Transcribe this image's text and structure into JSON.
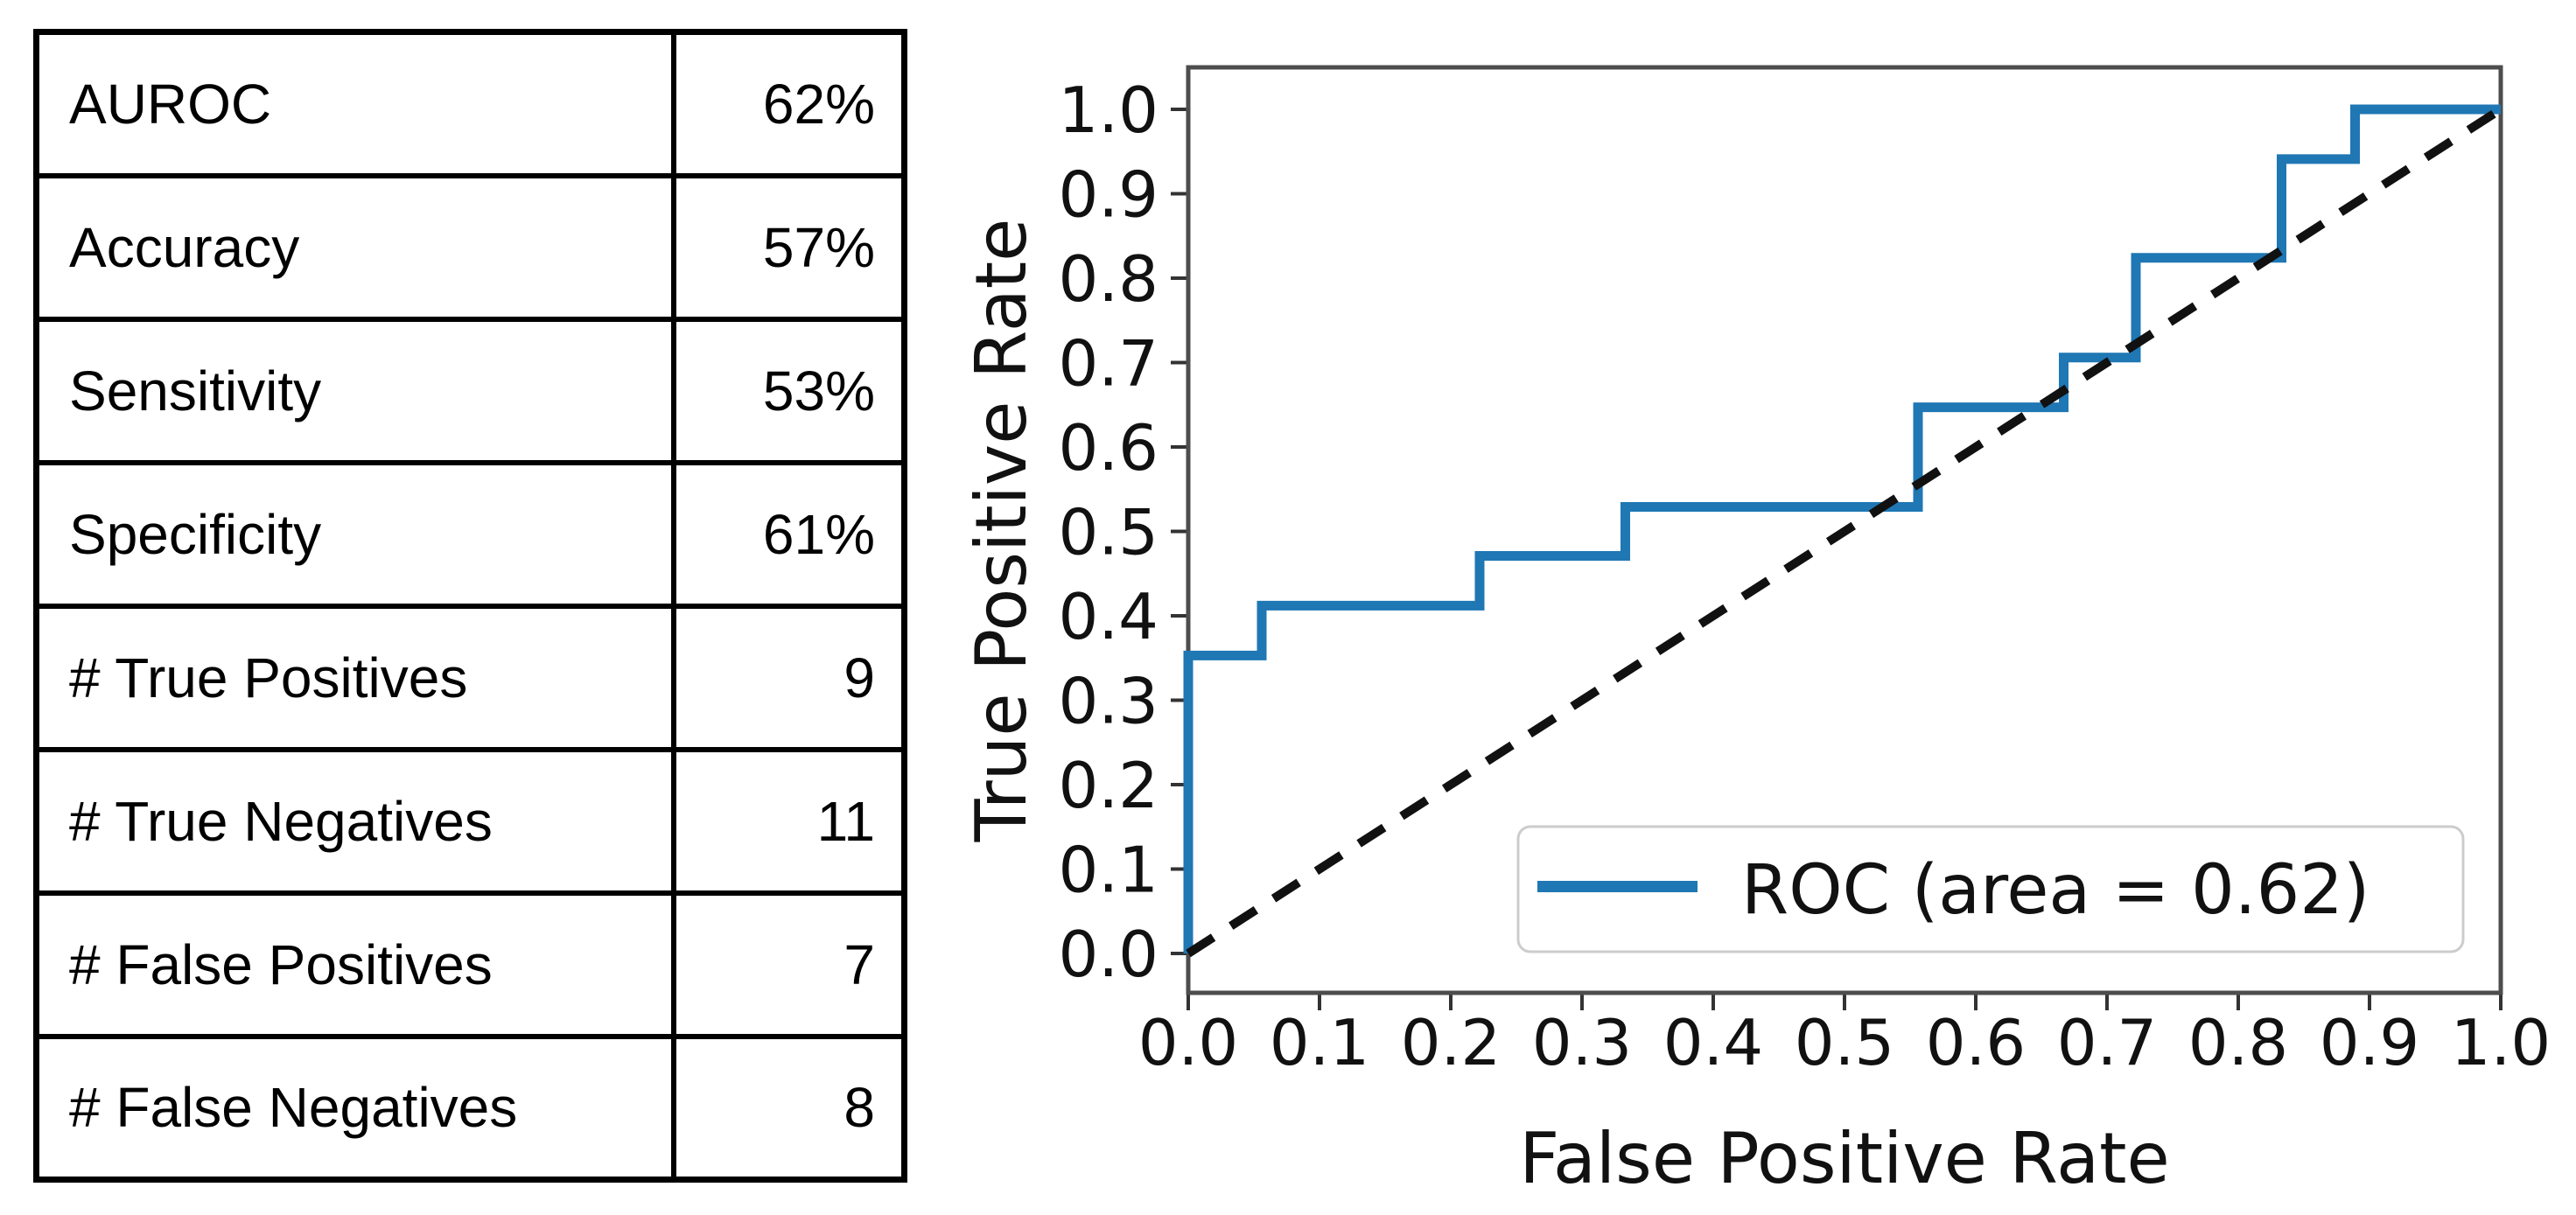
{
  "table": {
    "rows": [
      {
        "label": "AUROC",
        "value": "62%"
      },
      {
        "label": "Accuracy",
        "value": "57%"
      },
      {
        "label": "Sensitivity",
        "value": "53%"
      },
      {
        "label": "Specificity",
        "value": "61%"
      },
      {
        "label": "# True Positives",
        "value": "9"
      },
      {
        "label": "# True Negatives",
        "value": "11"
      },
      {
        "label": "# False Positives",
        "value": "7"
      },
      {
        "label": "# False Negatives",
        "value": "8"
      }
    ]
  },
  "chart_data": {
    "type": "line",
    "title": "",
    "xlabel": "False Positive Rate",
    "ylabel": "True Positive Rate",
    "xlim": [
      0.0,
      1.0
    ],
    "ylim": [
      -0.047,
      1.049
    ],
    "grid": false,
    "auc": 0.62,
    "xticks": {
      "values": [
        0.0,
        0.1,
        0.2,
        0.3,
        0.4,
        0.5,
        0.6,
        0.7,
        0.8,
        0.9,
        1.0
      ],
      "labels": [
        "0.0",
        "0.1",
        "0.2",
        "0.3",
        "0.4",
        "0.5",
        "0.6",
        "0.7",
        "0.8",
        "0.9",
        "1.0"
      ]
    },
    "yticks": {
      "values": [
        0.0,
        0.1,
        0.2,
        0.3,
        0.4,
        0.5,
        0.6,
        0.7,
        0.8,
        0.9,
        1.0
      ],
      "labels": [
        "0.0",
        "0.1",
        "0.2",
        "0.3",
        "0.4",
        "0.5",
        "0.6",
        "0.7",
        "0.8",
        "0.9",
        "1.0"
      ]
    },
    "legend": {
      "position": "lower right",
      "label": "ROC (area = 0.62)",
      "line_color": "#1f77b4"
    },
    "series": [
      {
        "name": "ROC (area = 0.62)",
        "style": "step",
        "color": "#1f77b4",
        "vertices": [
          [
            0.0,
            0.0
          ],
          [
            0.0,
            0.353
          ],
          [
            0.056,
            0.353
          ],
          [
            0.056,
            0.412
          ],
          [
            0.222,
            0.412
          ],
          [
            0.222,
            0.471
          ],
          [
            0.333,
            0.471
          ],
          [
            0.333,
            0.529
          ],
          [
            0.556,
            0.529
          ],
          [
            0.556,
            0.647
          ],
          [
            0.667,
            0.647
          ],
          [
            0.667,
            0.706
          ],
          [
            0.722,
            0.706
          ],
          [
            0.722,
            0.824
          ],
          [
            0.833,
            0.824
          ],
          [
            0.833,
            0.941
          ],
          [
            0.889,
            0.941
          ],
          [
            0.889,
            1.0
          ],
          [
            1.0,
            1.0
          ]
        ]
      },
      {
        "name": "chance-diagonal",
        "style": "dashed",
        "color": "#111111",
        "vertices": [
          [
            0.0,
            0.0
          ],
          [
            1.0,
            1.0
          ]
        ]
      }
    ]
  },
  "colors": {
    "roc_blue": "#1f77b4",
    "dash_black": "#111111",
    "spine": "#4d4d4d",
    "tick": "#333333",
    "legend_border": "#cccccc",
    "table_border": "#000000",
    "background": "#ffffff"
  }
}
